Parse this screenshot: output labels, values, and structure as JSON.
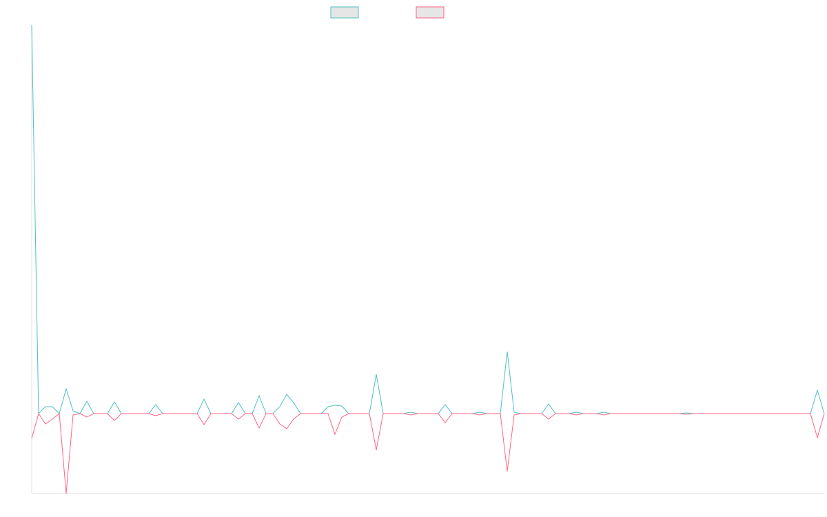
{
  "chart_data": {
    "type": "line",
    "ylim": [
      -116,
      564
    ],
    "series": [
      {
        "color": "#4bc0c0",
        "values": [
          564,
          0,
          10,
          10,
          0,
          36,
          4,
          0,
          18,
          0,
          0,
          0,
          17,
          0,
          0,
          0,
          0,
          0,
          13,
          0,
          0,
          0,
          0,
          0,
          0,
          21,
          0,
          0,
          0,
          0,
          16,
          0,
          0,
          26,
          0,
          0,
          10,
          28,
          16,
          0,
          0,
          0,
          0,
          10,
          12,
          11,
          0,
          0,
          0,
          0,
          57,
          0,
          0,
          0,
          0,
          2,
          0,
          0,
          0,
          0,
          13,
          0,
          0,
          0,
          0,
          2,
          0,
          0,
          0,
          90,
          2,
          0,
          0,
          0,
          0,
          14,
          0,
          0,
          0,
          2,
          0,
          0,
          0,
          2,
          0,
          0,
          0,
          0,
          0,
          0,
          0,
          0,
          0,
          0,
          0,
          1,
          0,
          0,
          0,
          0,
          0,
          0,
          0,
          0,
          0,
          0,
          0,
          0,
          0,
          0,
          0,
          0,
          0,
          0,
          34,
          0
        ]
      },
      {
        "color": "#ff6384",
        "values": [
          -36,
          0,
          -15,
          -8,
          0,
          -116,
          -2,
          0,
          -5,
          0,
          0,
          0,
          -10,
          0,
          0,
          0,
          0,
          0,
          -3,
          0,
          0,
          0,
          0,
          0,
          0,
          -16,
          0,
          0,
          0,
          0,
          -8,
          0,
          0,
          -21,
          0,
          0,
          -15,
          -22,
          -8,
          0,
          0,
          0,
          0,
          0,
          -30,
          -5,
          0,
          0,
          0,
          0,
          -53,
          0,
          0,
          0,
          0,
          -2,
          0,
          0,
          0,
          0,
          -13,
          0,
          0,
          0,
          0,
          -2,
          0,
          0,
          0,
          -84,
          -2,
          0,
          0,
          0,
          0,
          -8,
          0,
          0,
          0,
          -2,
          0,
          0,
          0,
          -2,
          0,
          0,
          0,
          0,
          0,
          0,
          0,
          0,
          0,
          0,
          0,
          -1,
          0,
          0,
          0,
          0,
          0,
          0,
          0,
          0,
          0,
          0,
          0,
          0,
          0,
          0,
          0,
          0,
          0,
          0,
          -35,
          0
        ]
      }
    ]
  }
}
